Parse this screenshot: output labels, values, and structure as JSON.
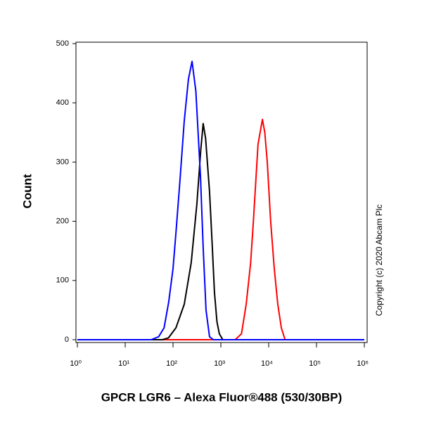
{
  "chart_data": {
    "type": "line",
    "xlabel": "GPCR LGR6 – Alexa Fluor®488 (530/30BP)",
    "ylabel": "Count",
    "annotation": "Copyright (c) 2020 Abcam Plc",
    "xscale": "log",
    "xlim": [
      1,
      1000000
    ],
    "xticks": [
      {
        "value": 1,
        "label": "10⁰"
      },
      {
        "value": 10,
        "label": "10¹"
      },
      {
        "value": 100,
        "label": "10²"
      },
      {
        "value": 1000,
        "label": "10³"
      },
      {
        "value": 10000,
        "label": "10⁴"
      },
      {
        "value": 100000,
        "label": "10⁵"
      },
      {
        "value": 1000000,
        "label": "10⁶"
      }
    ],
    "ylim": [
      0,
      500
    ],
    "yticks": [
      0,
      100,
      200,
      300,
      400,
      500
    ],
    "series": [
      {
        "color": "#ff0000",
        "x": [
          1,
          2000,
          2700,
          3390,
          4200,
          4790,
          5990,
          7400,
          8300,
          9350,
          11000,
          13100,
          15500,
          18400,
          22000,
          1000000
        ],
        "values": [
          0,
          0,
          10,
          60,
          130,
          200,
          330,
          372,
          350,
          300,
          200,
          120,
          60,
          20,
          0,
          0
        ]
      },
      {
        "color": "#000000",
        "x": [
          1,
          60,
          80,
          115,
          172,
          240,
          316,
          380,
          427,
          480,
          580,
          660,
          735,
          830,
          930,
          1100,
          1000000
        ],
        "values": [
          0,
          0,
          3,
          20,
          60,
          130,
          230,
          320,
          365,
          340,
          250,
          160,
          80,
          30,
          10,
          0,
          0
        ]
      },
      {
        "color": "#0000ff",
        "x": [
          1,
          35,
          50,
          65,
          81,
          100,
          115,
          140,
          172,
          210,
          250,
          300,
          375,
          430,
          490,
          580,
          700,
          1000000
        ],
        "values": [
          0,
          0,
          5,
          20,
          63,
          120,
          180,
          270,
          370,
          440,
          470,
          420,
          276,
          150,
          50,
          5,
          0,
          0
        ]
      }
    ]
  }
}
